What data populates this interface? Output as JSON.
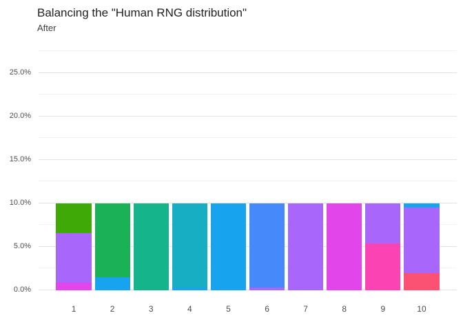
{
  "header": {
    "title": "Balancing the \"Human RNG distribution\"",
    "subtitle": "After"
  },
  "chart_data": {
    "type": "bar",
    "stacked": true,
    "orientation": "vertical",
    "title": "Balancing the \"Human RNG distribution\"",
    "subtitle": "After",
    "legend": "none",
    "grid": true,
    "background": "#ffffff",
    "categories": [
      "1",
      "2",
      "3",
      "4",
      "5",
      "6",
      "7",
      "8",
      "9",
      "10"
    ],
    "xlabel": "",
    "ylabel": "",
    "y_axis": {
      "unit": "percent",
      "max_value": 27.5,
      "major_ticks": [
        {
          "value": 0,
          "label": "0.0%"
        },
        {
          "value": 5,
          "label": "5.0%"
        },
        {
          "value": 10,
          "label": "10.0%"
        },
        {
          "value": 15,
          "label": "15.0%"
        },
        {
          "value": 20,
          "label": "20.0%"
        },
        {
          "value": 25,
          "label": "25.0%"
        }
      ],
      "minor_tick_values": [
        2.5,
        7.5,
        12.5,
        17.5,
        22.5,
        27.5
      ]
    },
    "colors": {
      "green": "#3fa908",
      "emerald": "#1ab157",
      "teal": "#16b48b",
      "cyan": "#17adc2",
      "blue": "#18a3ee",
      "royal_blue": "#4589fa",
      "purple": "#a966fa",
      "magenta": "#e245ea",
      "pink": "#fc43b4",
      "red_pink": "#fb5172"
    },
    "bars": [
      {
        "category": "1",
        "total": 10,
        "segments": [
          {
            "color_name": "magenta",
            "value": 0.9
          },
          {
            "color_name": "purple",
            "value": 5.7
          },
          {
            "color_name": "green",
            "value": 3.4
          }
        ]
      },
      {
        "category": "2",
        "total": 10,
        "segments": [
          {
            "color_name": "blue",
            "value": 1.5
          },
          {
            "color_name": "emerald",
            "value": 8.5
          }
        ]
      },
      {
        "category": "3",
        "total": 10,
        "segments": [
          {
            "color_name": "teal",
            "value": 10
          }
        ]
      },
      {
        "category": "4",
        "total": 10,
        "segments": [
          {
            "color_name": "blue",
            "value": 0.3
          },
          {
            "color_name": "cyan",
            "value": 9.7
          }
        ]
      },
      {
        "category": "5",
        "total": 10,
        "segments": [
          {
            "color_name": "blue",
            "value": 10
          }
        ]
      },
      {
        "category": "6",
        "total": 10,
        "segments": [
          {
            "color_name": "purple",
            "value": 0.3
          },
          {
            "color_name": "royal_blue",
            "value": 9.7
          }
        ]
      },
      {
        "category": "7",
        "total": 10,
        "segments": [
          {
            "color_name": "purple",
            "value": 10
          }
        ]
      },
      {
        "category": "8",
        "total": 10,
        "segments": [
          {
            "color_name": "magenta",
            "value": 10
          }
        ]
      },
      {
        "category": "9",
        "total": 10,
        "segments": [
          {
            "color_name": "pink",
            "value": 5.4
          },
          {
            "color_name": "purple",
            "value": 4.6
          }
        ]
      },
      {
        "category": "10",
        "total": 10,
        "segments": [
          {
            "color_name": "red_pink",
            "value": 2.0
          },
          {
            "color_name": "purple",
            "value": 7.5
          },
          {
            "color_name": "blue",
            "value": 0.5
          }
        ]
      }
    ]
  }
}
